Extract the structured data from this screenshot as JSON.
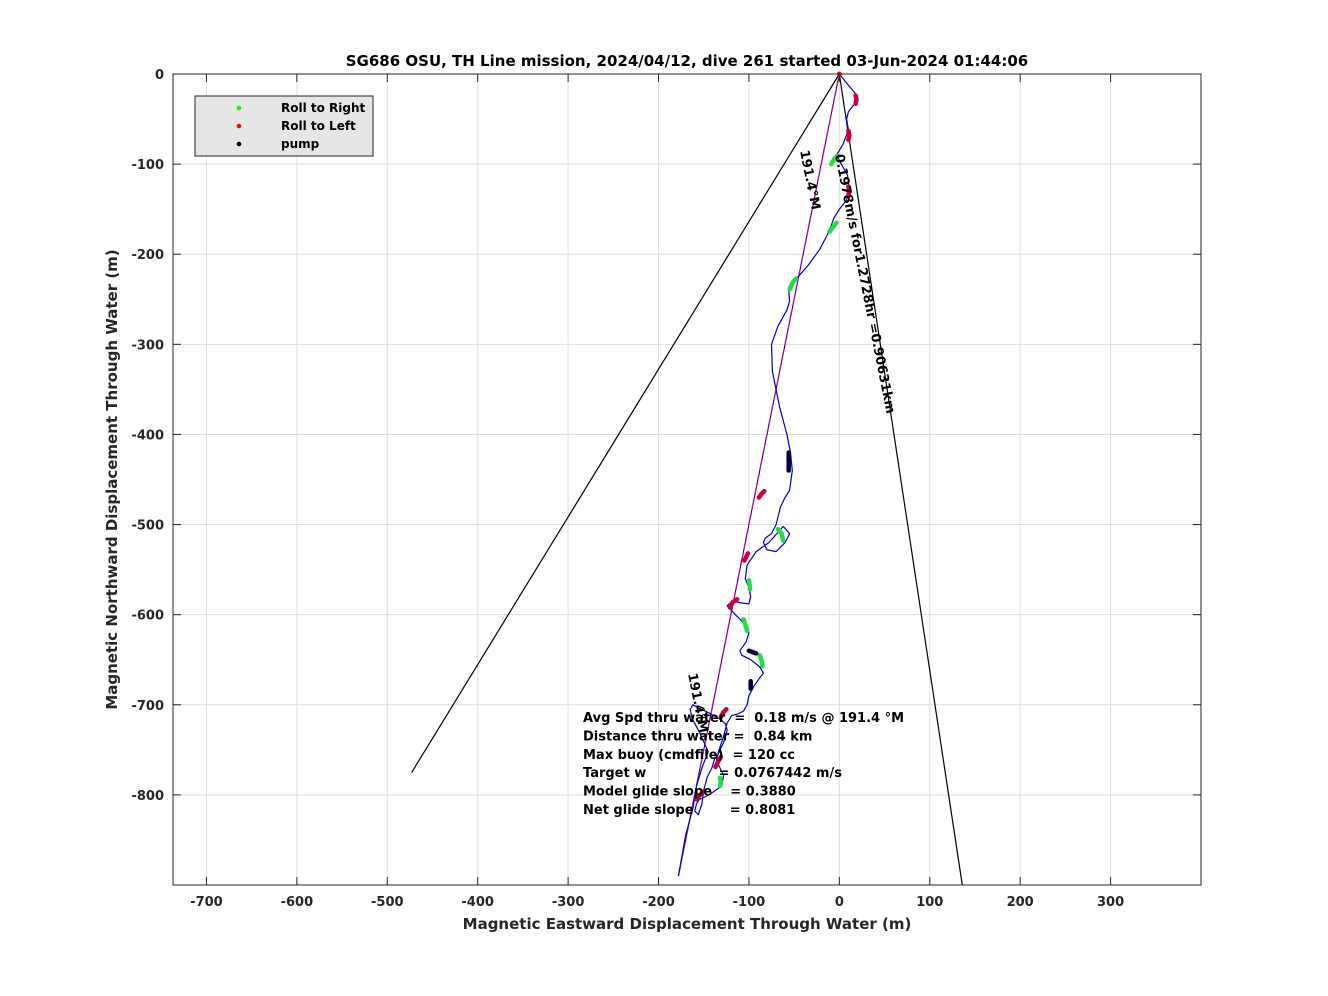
{
  "chart_data": {
    "type": "line",
    "title": "SG686 OSU, TH Line mission, 2024/04/12, dive 261 started 03-Jun-2024 01:44:06",
    "xlabel": "Magnetic Eastward Displacement Through Water (m)",
    "ylabel": "Magnetic Northward Displacement Through Water (m)",
    "xlim": [
      -737,
      400
    ],
    "ylim": [
      -900,
      0
    ],
    "xticks": [
      -700,
      -600,
      -500,
      -400,
      -300,
      -200,
      -100,
      0,
      100,
      200,
      300
    ],
    "yticks": [
      0,
      -100,
      -200,
      -300,
      -400,
      -500,
      -600,
      -700,
      -800
    ],
    "grid": true,
    "legend": {
      "placement": "top-left",
      "entries": [
        {
          "name": "Roll to Right",
          "color": "#00ff00"
        },
        {
          "name": "Roll to Left",
          "color": "#ff0000"
        },
        {
          "name": "pump",
          "color": "#000000"
        }
      ]
    },
    "colors": {
      "track": "#0000c8",
      "roll_right": "#22dd44",
      "roll_left": "#cc0033",
      "pump": "#000033",
      "heading_line": "#cc00cc",
      "wedge": "#000000",
      "grid": "#dedede"
    },
    "track": {
      "x": [
        0,
        8,
        18,
        17,
        10,
        8,
        10,
        4,
        -3,
        2,
        9,
        11,
        8,
        0,
        -6,
        -9,
        -13,
        -22,
        -35,
        -50,
        -56,
        -55,
        -58,
        -68,
        -75,
        -74,
        -66,
        -58,
        -54,
        -52,
        -55,
        -60,
        -65,
        -70,
        -75,
        -82,
        -84,
        -80,
        -70,
        -60,
        -55,
        -62,
        -78,
        -92,
        -102,
        -104,
        -100,
        -98,
        -100,
        -108,
        -118,
        -124,
        -115,
        -105,
        -100,
        -103,
        -110,
        -108,
        -98,
        -88,
        -84,
        -88,
        -95,
        -100,
        -102,
        -106,
        -112,
        -119,
        -124,
        -128,
        -133,
        -136,
        -133,
        -128,
        -130,
        -140,
        -150,
        -155,
        -158,
        -160,
        -156,
        -152,
        -150,
        -146,
        -141,
        -138,
        -134,
        -131,
        -128,
        -126,
        -124,
        -126,
        -132,
        -139,
        -146,
        -155,
        -162,
        -165,
        -163,
        -155,
        -145,
        -152,
        -158,
        -162,
        -170,
        -178
      ],
      "y": [
        0,
        -10,
        -22,
        -33,
        -42,
        -50,
        -62,
        -78,
        -90,
        -100,
        -112,
        -128,
        -140,
        -150,
        -160,
        -168,
        -178,
        -195,
        -213,
        -230,
        -240,
        -252,
        -262,
        -280,
        -300,
        -330,
        -370,
        -400,
        -420,
        -440,
        -462,
        -470,
        -480,
        -500,
        -510,
        -515,
        -520,
        -528,
        -530,
        -520,
        -510,
        -502,
        -520,
        -530,
        -545,
        -560,
        -570,
        -580,
        -588,
        -587,
        -585,
        -590,
        -600,
        -610,
        -620,
        -630,
        -640,
        -645,
        -650,
        -658,
        -665,
        -670,
        -680,
        -690,
        -700,
        -707,
        -710,
        -712,
        -720,
        -735,
        -750,
        -762,
        -768,
        -778,
        -790,
        -797,
        -803,
        -805,
        -810,
        -818,
        -822,
        -810,
        -795,
        -780,
        -770,
        -760,
        -755,
        -748,
        -742,
        -735,
        -728,
        -721,
        -716,
        -712,
        -708,
        -704,
        -700,
        -705,
        -715,
        -730,
        -752,
        -770,
        -790,
        -815,
        -845,
        -890
      ]
    },
    "roll_right_segments": [
      {
        "x": [
          -2,
          -6,
          -9
        ],
        "y": [
          -91,
          -95,
          -100
        ]
      },
      {
        "x": [
          -3,
          -7,
          -11
        ],
        "y": [
          -165,
          -170,
          -175
        ]
      },
      {
        "x": [
          -48,
          -52,
          -55
        ],
        "y": [
          -227,
          -232,
          -239
        ]
      },
      {
        "x": [
          -68,
          -64,
          -62
        ],
        "y": [
          -505,
          -510,
          -518
        ]
      },
      {
        "x": [
          -100,
          -99,
          -99
        ],
        "y": [
          -562,
          -567,
          -572
        ]
      },
      {
        "x": [
          -106,
          -104,
          -102
        ],
        "y": [
          -605,
          -611,
          -618
        ]
      },
      {
        "x": [
          -88,
          -86,
          -85
        ],
        "y": [
          -645,
          -651,
          -657
        ]
      },
      {
        "x": [
          -132,
          -131,
          -132
        ],
        "y": [
          -781,
          -786,
          -790
        ]
      }
    ],
    "roll_left_segments": [
      {
        "x": [
          18,
          19,
          18
        ],
        "y": [
          -24,
          -28,
          -33
        ]
      },
      {
        "x": [
          10,
          11,
          10
        ],
        "y": [
          -63,
          -68,
          -73
        ]
      },
      {
        "x": [
          10,
          11,
          10
        ],
        "y": [
          -125,
          -130,
          -135
        ]
      },
      {
        "x": [
          -83,
          -86,
          -89
        ],
        "y": [
          -463,
          -466,
          -470
        ]
      },
      {
        "x": [
          -101,
          -103,
          -105
        ],
        "y": [
          -532,
          -536,
          -540
        ]
      },
      {
        "x": [
          -113,
          -118,
          -121
        ],
        "y": [
          -583,
          -586,
          -592
        ]
      },
      {
        "x": [
          -125,
          -128,
          -131
        ],
        "y": [
          -705,
          -708,
          -713
        ]
      },
      {
        "x": [
          -131,
          -134,
          -137
        ],
        "y": [
          -758,
          -763,
          -769
        ]
      },
      {
        "x": [
          -150,
          -154,
          -158
        ],
        "y": [
          -796,
          -800,
          -805
        ]
      }
    ],
    "pump_segments": [
      {
        "x": [
          -56,
          -56,
          -56
        ],
        "y": [
          -420,
          -430,
          -440
        ]
      },
      {
        "x": [
          -100,
          -95,
          -92
        ],
        "y": [
          -640,
          -642,
          -643
        ]
      },
      {
        "x": [
          -98,
          -98,
          -98
        ],
        "y": [
          -674,
          -678,
          -682
        ]
      }
    ],
    "heading_line": {
      "x": [
        0,
        -178
      ],
      "y": [
        0,
        -890
      ]
    },
    "wedge_left": {
      "x": [
        0,
        -473
      ],
      "y": [
        0,
        -775
      ]
    },
    "wedge_right": {
      "x": [
        0,
        136
      ],
      "y": [
        0,
        -900
      ]
    },
    "annotations": {
      "heading_top": "191.4°M",
      "speed_text": "0.1978m/s for1.2728hr =0.90631km",
      "heading_bottom": "191.4°M"
    },
    "stats": [
      "Avg Spd thru water  =  0.18 m/s @ 191.4 °M",
      "Distance thru water =  0.84 km",
      "Max buoy (cmdfile)  = 120 cc",
      "Target w                = 0.0767442 m/s",
      "Model glide slope    = 0.3880",
      "Net glide slope        = 0.8081"
    ]
  }
}
